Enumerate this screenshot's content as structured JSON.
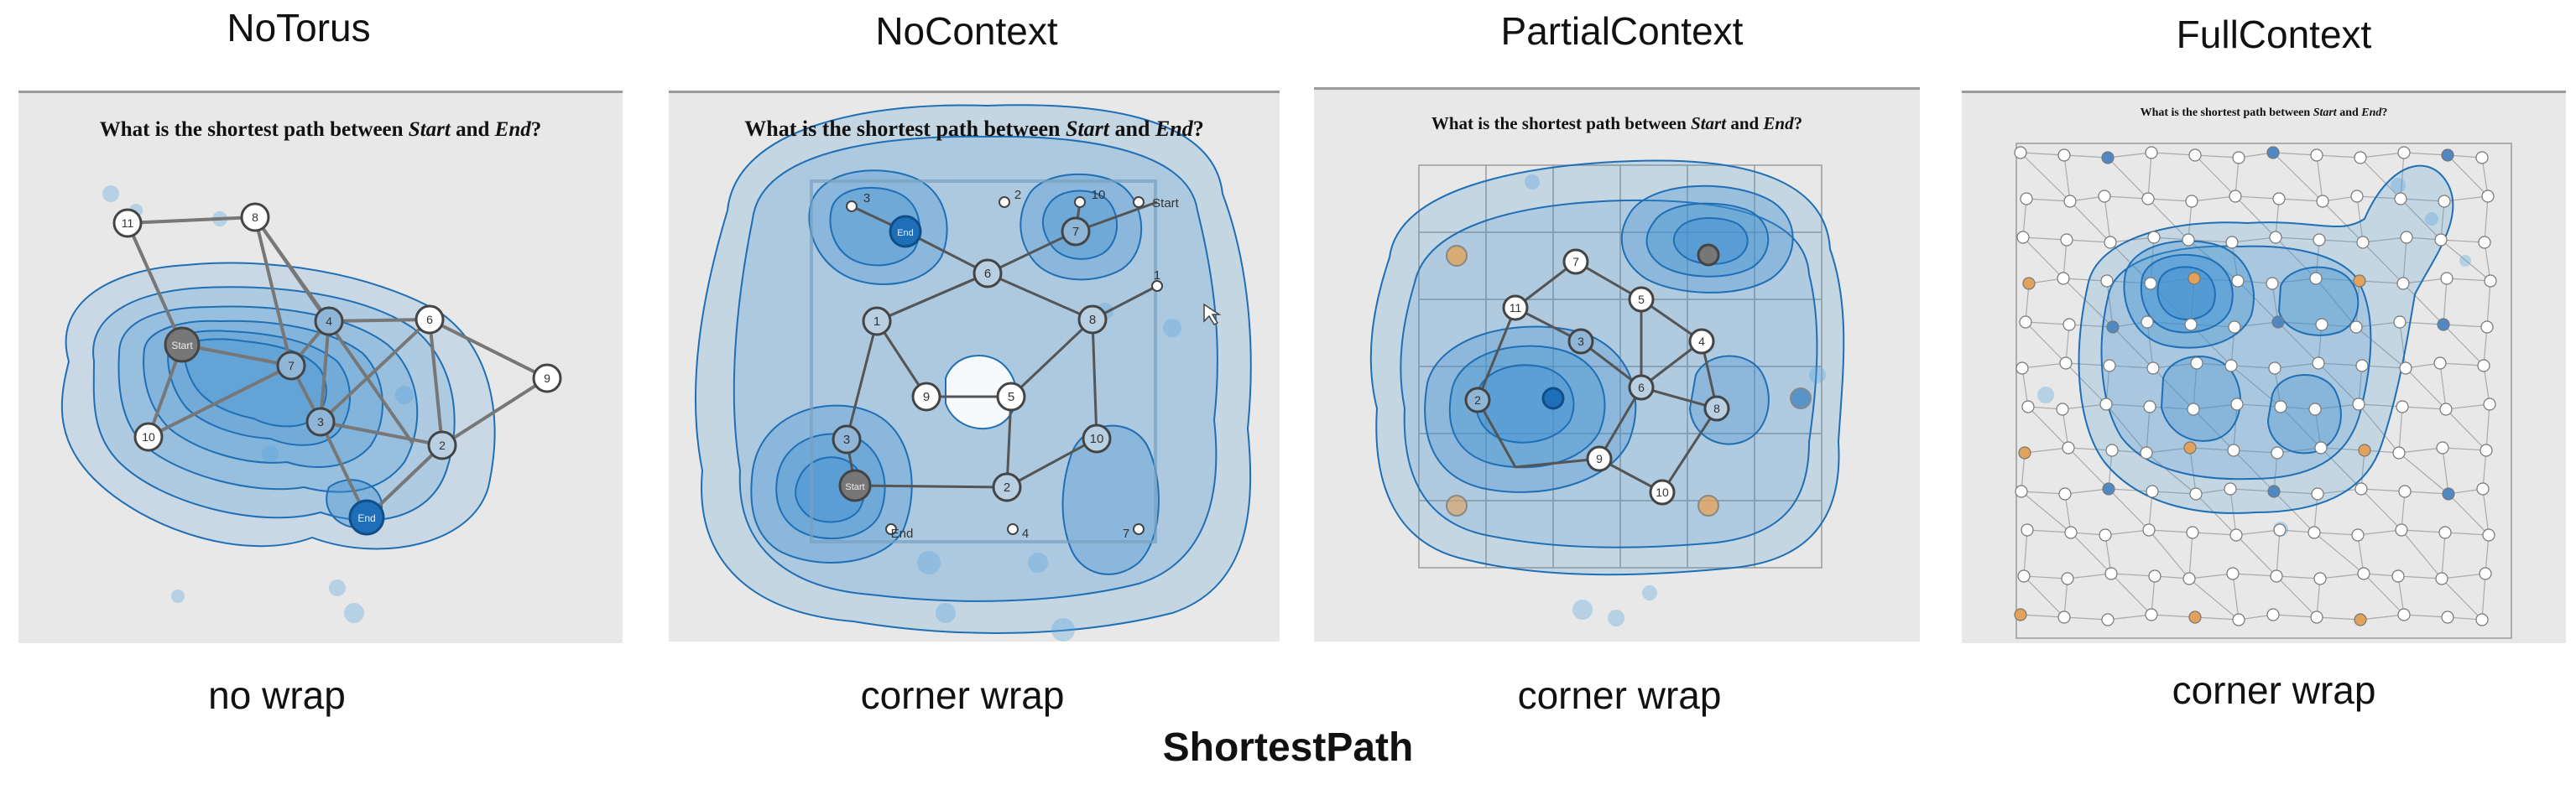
{
  "figure": {
    "caption": "ShortestPath"
  },
  "panels": [
    {
      "title": "NoTorus",
      "caption": "no wrap",
      "question": {
        "prefix": "What is the shortest path between ",
        "start": "Start",
        "middle": " and ",
        "end": "End",
        "suffix": "?"
      },
      "node_labels": [
        "11",
        "8",
        "4",
        "7",
        "6",
        "9",
        "10",
        "3",
        "2",
        "Start",
        "End"
      ]
    },
    {
      "title": "NoContext",
      "caption": "corner wrap",
      "question": {
        "prefix": "What is the shortest path between ",
        "start": "Start",
        "middle": " and ",
        "end": "End",
        "suffix": "?"
      },
      "node_labels": [
        "3",
        "2",
        "10",
        "Start",
        "7",
        "6",
        "1",
        "8",
        "9",
        "5",
        "10",
        "3",
        "2",
        "4",
        "7",
        "End",
        "1",
        "End",
        "Start"
      ]
    },
    {
      "title": "PartialContext",
      "caption": "corner wrap",
      "question": {
        "prefix": "What is the shortest path between ",
        "start": "Start",
        "middle": " and ",
        "end": "End",
        "suffix": "?"
      },
      "node_labels": [
        "11",
        "7",
        "3",
        "6",
        "5",
        "4",
        "8",
        "9",
        "2",
        "10"
      ]
    },
    {
      "title": "FullContext",
      "caption": "corner wrap",
      "question": {
        "prefix": "What is the shortest path between ",
        "start": "Start",
        "middle": " and ",
        "end": "End",
        "suffix": "?"
      },
      "node_labels": []
    }
  ],
  "colors": {
    "heat": "#3d8fd1",
    "heat_dark": "#1e6fb5",
    "edge": "#777777",
    "node_orange": "#e3a25a",
    "panel_bg": "#e8e8e8"
  }
}
